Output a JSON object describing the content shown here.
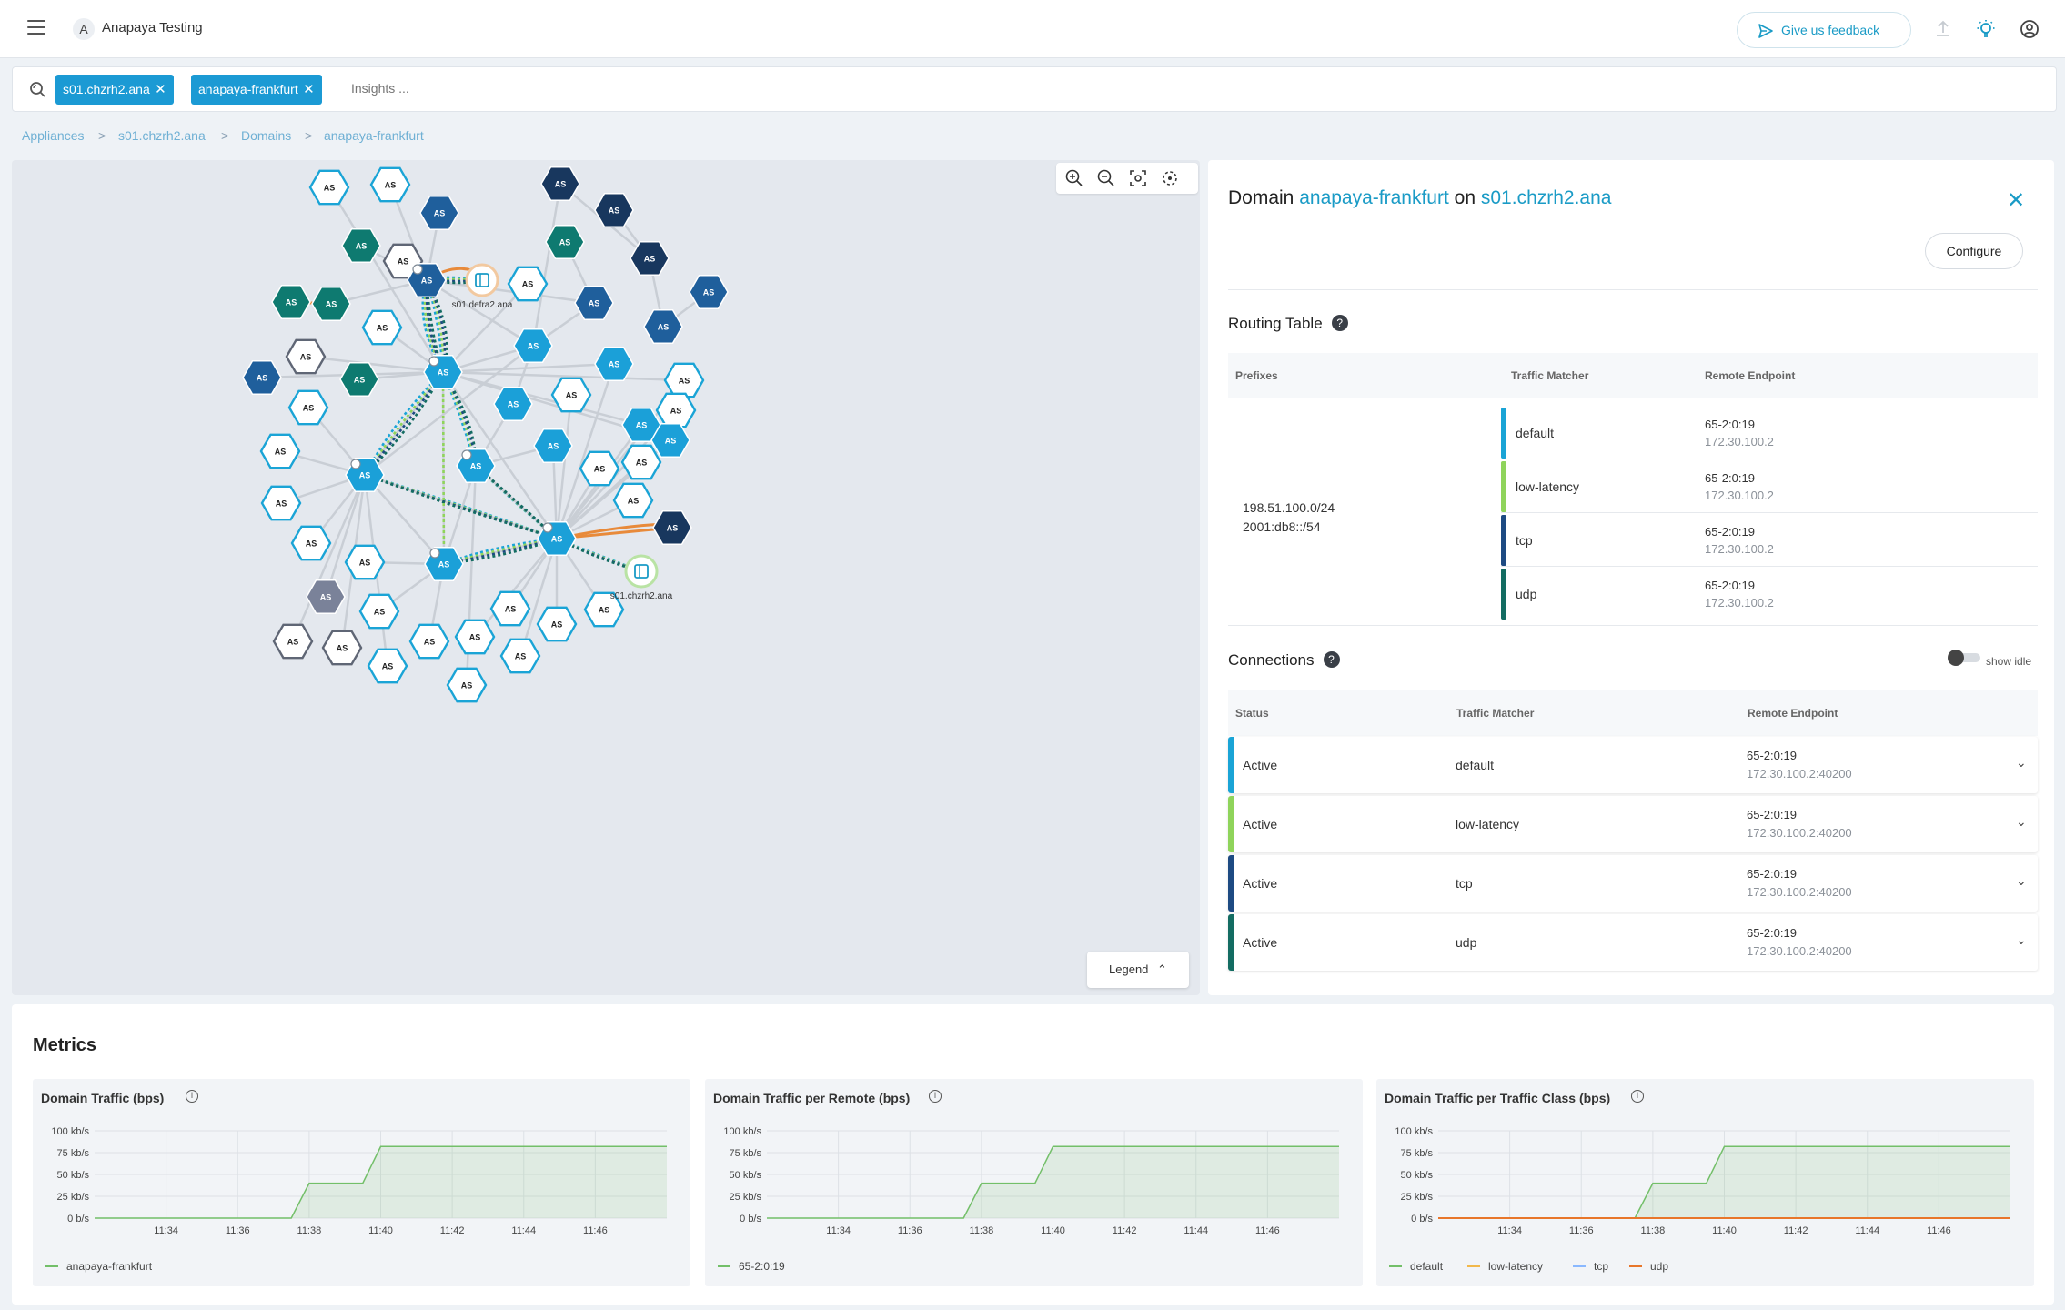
{
  "header": {
    "org_initial": "A",
    "org_name": "Anapaya Testing",
    "feedback_label": "Give us feedback",
    "icons": [
      "menu-icon",
      "upload-icon",
      "lightbulb-icon",
      "account-icon"
    ]
  },
  "search": {
    "chips": [
      "s01.chzrh2.ana",
      "anapaya-frankfurt"
    ],
    "placeholder": "Insights ..."
  },
  "breadcrumb": [
    "Appliances",
    "s01.chzrh2.ana",
    "Domains",
    "anapaya-frankfurt"
  ],
  "map": {
    "node_label": "AS",
    "appliance_labels": [
      "s01.defra2.ana",
      "s01.chzrh2.ana"
    ],
    "legend_label": "Legend",
    "colors": {
      "background": "#e4e8ee",
      "light": "#1ba0d8",
      "mid": "#1f5f9c",
      "dark": "#18375e",
      "teal": "#0e7a70",
      "outline": "#1aa4d6",
      "grey": "#7a8299"
    }
  },
  "panel": {
    "title_prefix": "Domain",
    "domain": "anapaya-frankfurt",
    "title_mid": "on",
    "appliance": "s01.chzrh2.ana",
    "configure_label": "Configure",
    "routing": {
      "title": "Routing Table",
      "headers": [
        "Prefixes",
        "Traffic Matcher",
        "Remote Endpoint"
      ],
      "prefixes": [
        "198.51.100.0/24",
        "2001:db8::/54"
      ],
      "rows": [
        {
          "matcher": "default",
          "ia": "65-2:0:19",
          "ip": "172.30.100.2",
          "color": "#1aa4d6"
        },
        {
          "matcher": "low-latency",
          "ia": "65-2:0:19",
          "ip": "172.30.100.2",
          "color": "#8fd45b"
        },
        {
          "matcher": "tcp",
          "ia": "65-2:0:19",
          "ip": "172.30.100.2",
          "color": "#1d4a82"
        },
        {
          "matcher": "udp",
          "ia": "65-2:0:19",
          "ip": "172.30.100.2",
          "color": "#136c62"
        }
      ]
    },
    "connections": {
      "title": "Connections",
      "show_idle_label": "show idle",
      "headers": [
        "Status",
        "Traffic Matcher",
        "Remote Endpoint"
      ],
      "rows": [
        {
          "status": "Active",
          "matcher": "default",
          "ia": "65-2:0:19",
          "ip": "172.30.100.2:40200",
          "color": "#1aa4d6"
        },
        {
          "status": "Active",
          "matcher": "low-latency",
          "ia": "65-2:0:19",
          "ip": "172.30.100.2:40200",
          "color": "#8fd45b"
        },
        {
          "status": "Active",
          "matcher": "tcp",
          "ia": "65-2:0:19",
          "ip": "172.30.100.2:40200",
          "color": "#1d4a82"
        },
        {
          "status": "Active",
          "matcher": "udp",
          "ia": "65-2:0:19",
          "ip": "172.30.100.2:40200",
          "color": "#136c62"
        }
      ]
    }
  },
  "metrics": {
    "title": "Metrics",
    "info_glyph": "i"
  },
  "chart_data": [
    {
      "type": "area",
      "title": "Domain Traffic (bps)",
      "y_ticks": [
        "100 kb/s",
        "75 kb/s",
        "50 kb/s",
        "25 kb/s",
        "0 b/s"
      ],
      "x_ticks": [
        "11:34",
        "11:36",
        "11:38",
        "11:40",
        "11:42",
        "11:44",
        "11:46"
      ],
      "ylim": [
        0,
        100
      ],
      "x": [
        "11:32",
        "11:37.5",
        "11:38",
        "11:39.5",
        "11:40",
        "11:48"
      ],
      "series": [
        {
          "name": "anapaya-frankfurt",
          "color": "#73bf69",
          "values": [
            0,
            0,
            40,
            40,
            82,
            82
          ]
        }
      ]
    },
    {
      "type": "area",
      "title": "Domain Traffic per Remote (bps)",
      "y_ticks": [
        "100 kb/s",
        "75 kb/s",
        "50 kb/s",
        "25 kb/s",
        "0 b/s"
      ],
      "x_ticks": [
        "11:34",
        "11:36",
        "11:38",
        "11:40",
        "11:42",
        "11:44",
        "11:46"
      ],
      "ylim": [
        0,
        100
      ],
      "x": [
        "11:32",
        "11:37.5",
        "11:38",
        "11:39.5",
        "11:40",
        "11:48"
      ],
      "series": [
        {
          "name": "65-2:0:19",
          "color": "#73bf69",
          "values": [
            0,
            0,
            40,
            40,
            82,
            82
          ]
        }
      ]
    },
    {
      "type": "area",
      "title": "Domain Traffic per Traffic Class (bps)",
      "y_ticks": [
        "100 kb/s",
        "75 kb/s",
        "50 kb/s",
        "25 kb/s",
        "0 b/s"
      ],
      "x_ticks": [
        "11:34",
        "11:36",
        "11:38",
        "11:40",
        "11:42",
        "11:44",
        "11:46"
      ],
      "ylim": [
        0,
        100
      ],
      "x": [
        "11:32",
        "11:37.5",
        "11:38",
        "11:39.5",
        "11:40",
        "11:48"
      ],
      "series": [
        {
          "name": "default",
          "color": "#73bf69",
          "values": [
            0,
            0,
            40,
            40,
            82,
            82
          ]
        },
        {
          "name": "low-latency",
          "color": "#f2b84b",
          "values": [
            0,
            0,
            0,
            0,
            0,
            0
          ]
        },
        {
          "name": "tcp",
          "color": "#8ab8ff",
          "values": [
            0,
            0,
            0,
            0,
            0,
            0
          ]
        },
        {
          "name": "udp",
          "color": "#e8762a",
          "values": [
            0,
            0,
            0,
            0,
            0,
            0
          ]
        }
      ]
    }
  ]
}
